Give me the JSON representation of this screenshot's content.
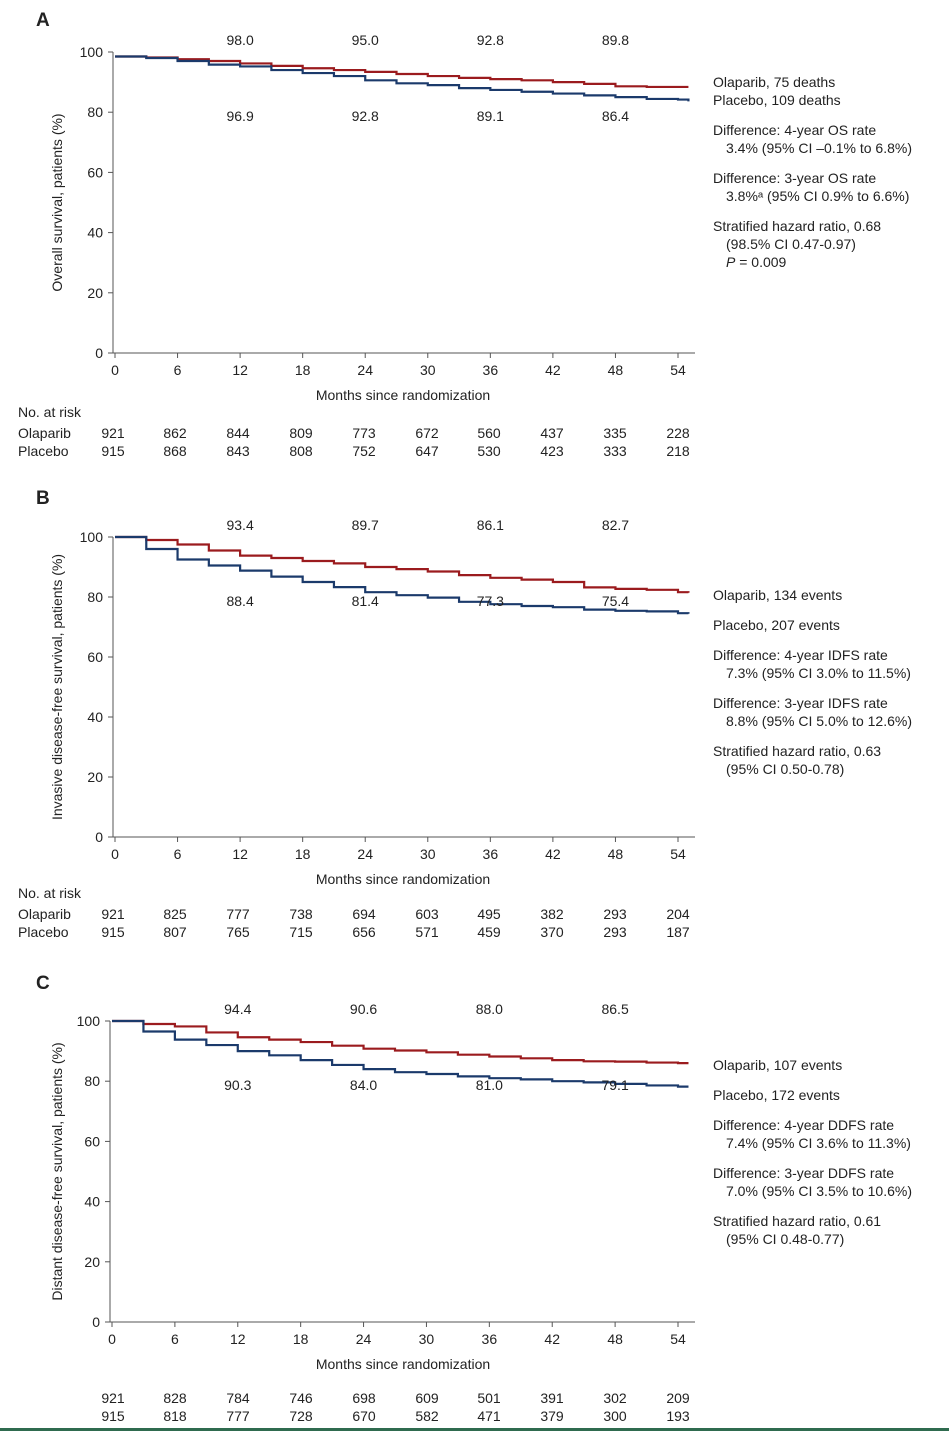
{
  "colors": {
    "olaparib": "#9b1b1e",
    "placebo": "#1b3a6b",
    "axis": "#555555"
  },
  "x_label": "Months since randomization",
  "x_ticks": [
    "0",
    "6",
    "12",
    "18",
    "24",
    "30",
    "36",
    "42",
    "48",
    "54"
  ],
  "y_ticks": [
    "0",
    "20",
    "40",
    "60",
    "80",
    "100"
  ],
  "risk_header": "No. at risk",
  "arm_labels": {
    "olaparib": "Olaparib",
    "placebo": "Placebo"
  },
  "chart_data": [
    {
      "panel": "A",
      "type": "line",
      "title": "",
      "xlabel": "Months since randomization",
      "ylabel": "Overall survival, patients (%)",
      "xlim": [
        0,
        55
      ],
      "ylim": [
        0,
        100
      ],
      "series": [
        {
          "name": "Olaparib",
          "x": [
            0,
            3,
            6,
            9,
            12,
            15,
            18,
            21,
            24,
            27,
            30,
            33,
            36,
            39,
            42,
            45,
            48,
            51,
            54,
            55
          ],
          "values": [
            98.5,
            98.2,
            97.6,
            97.0,
            96.2,
            95.4,
            94.6,
            94.0,
            93.4,
            92.7,
            92.0,
            91.4,
            91.0,
            90.6,
            90.0,
            89.4,
            88.6,
            88.4,
            88.4,
            88.4
          ]
        },
        {
          "name": "Placebo",
          "x": [
            0,
            3,
            6,
            9,
            12,
            15,
            18,
            21,
            24,
            27,
            30,
            33,
            36,
            39,
            42,
            45,
            48,
            51,
            54,
            55
          ],
          "values": [
            98.5,
            98.0,
            97.0,
            95.8,
            95.2,
            94.0,
            93.0,
            92.0,
            90.6,
            89.6,
            89.0,
            88.0,
            87.4,
            86.8,
            86.2,
            85.6,
            85.0,
            84.4,
            84.2,
            83.6
          ]
        }
      ],
      "annotations_top": [
        "98.0",
        "95.0",
        "92.8",
        "89.8"
      ],
      "annotations_bottom": [
        "96.9",
        "92.8",
        "89.1",
        "86.4"
      ],
      "legend": [
        "Olaparib, 75 deaths",
        "Placebo, 109 deaths",
        "",
        "Difference: 4-year OS rate",
        "3.4% (95% CI –0.1% to 6.8%)",
        "",
        "Difference: 3-year OS rate",
        "3.8%ᵃ (95% CI 0.9% to 6.6%)",
        "",
        "Stratified hazard ratio, 0.68",
        "(98.5% CI 0.47-0.97)",
        "P = 0.009"
      ],
      "risk_olaparib": [
        "921",
        "862",
        "844",
        "809",
        "773",
        "672",
        "560",
        "437",
        "335",
        "228"
      ],
      "risk_placebo": [
        "915",
        "868",
        "843",
        "808",
        "752",
        "647",
        "530",
        "423",
        "333",
        "218"
      ]
    },
    {
      "panel": "B",
      "type": "line",
      "title": "",
      "xlabel": "Months since randomization",
      "ylabel": "Invasive disease-free survival, patients (%)",
      "xlim": [
        0,
        55
      ],
      "ylim": [
        0,
        100
      ],
      "series": [
        {
          "name": "Olaparib",
          "x": [
            0,
            3,
            6,
            9,
            12,
            15,
            18,
            21,
            24,
            27,
            30,
            33,
            36,
            39,
            42,
            45,
            48,
            51,
            54,
            55
          ],
          "values": [
            100,
            99.0,
            97.5,
            95.5,
            93.8,
            93.0,
            92.0,
            91.2,
            90.0,
            89.3,
            88.5,
            87.3,
            86.4,
            85.8,
            85.0,
            83.2,
            82.7,
            82.4,
            81.6,
            81.4
          ]
        },
        {
          "name": "Placebo",
          "x": [
            0,
            3,
            6,
            9,
            12,
            15,
            18,
            21,
            24,
            27,
            30,
            33,
            36,
            39,
            42,
            45,
            48,
            51,
            54,
            55
          ],
          "values": [
            100,
            96.0,
            92.5,
            90.5,
            88.8,
            86.8,
            85.0,
            83.3,
            81.6,
            80.6,
            79.8,
            78.4,
            77.6,
            77.0,
            76.6,
            75.8,
            75.4,
            75.2,
            74.6,
            74.4
          ]
        }
      ],
      "annotations_top": [
        "93.4",
        "89.7",
        "86.1",
        "82.7"
      ],
      "annotations_bottom": [
        "88.4",
        "81.4",
        "77.3",
        "75.4"
      ],
      "legend": [
        "Olaparib, 134 events",
        "",
        "Placebo, 207 events",
        "",
        "Difference: 4-year IDFS rate",
        "7.3% (95% CI 3.0% to 11.5%)",
        "",
        "Difference: 3-year IDFS rate",
        "8.8% (95% CI 5.0% to 12.6%)",
        "",
        "Stratified hazard ratio, 0.63",
        "(95% CI 0.50-0.78)"
      ],
      "risk_olaparib": [
        "921",
        "825",
        "777",
        "738",
        "694",
        "603",
        "495",
        "382",
        "293",
        "204"
      ],
      "risk_placebo": [
        "915",
        "807",
        "765",
        "715",
        "656",
        "571",
        "459",
        "370",
        "293",
        "187"
      ]
    },
    {
      "panel": "C",
      "type": "line",
      "title": "",
      "xlabel": "Months since randomization",
      "ylabel": "Distant disease-free survival, patients (%)",
      "xlim": [
        0,
        55
      ],
      "ylim": [
        0,
        100
      ],
      "series": [
        {
          "name": "Olaparib",
          "x": [
            0,
            3,
            6,
            9,
            12,
            15,
            18,
            21,
            24,
            27,
            30,
            33,
            36,
            39,
            42,
            45,
            48,
            51,
            54,
            55
          ],
          "values": [
            100,
            99.0,
            98.2,
            96.2,
            94.6,
            93.8,
            93.0,
            91.8,
            90.8,
            90.2,
            89.6,
            88.8,
            88.2,
            87.6,
            87.0,
            86.6,
            86.5,
            86.2,
            86.0,
            86.0
          ]
        },
        {
          "name": "Placebo",
          "x": [
            0,
            3,
            6,
            9,
            12,
            15,
            18,
            21,
            24,
            27,
            30,
            33,
            36,
            39,
            42,
            45,
            48,
            51,
            54,
            55
          ],
          "values": [
            100,
            96.5,
            93.8,
            92.0,
            90.0,
            88.6,
            87.0,
            85.4,
            84.0,
            83.0,
            82.4,
            81.6,
            81.0,
            80.6,
            80.0,
            79.6,
            79.1,
            78.6,
            78.2,
            78.2
          ]
        }
      ],
      "annotations_top": [
        "94.4",
        "90.6",
        "88.0",
        "86.5"
      ],
      "annotations_bottom": [
        "90.3",
        "84.0",
        "81.0",
        "79.1"
      ],
      "legend": [
        "Olaparib, 107 events",
        "",
        "Placebo, 172 events",
        "",
        "Difference: 4-year DDFS rate",
        "7.4% (95% CI 3.6% to 11.3%)",
        "",
        "Difference: 3-year DDFS rate",
        "7.0% (95% CI 3.5% to 10.6%)",
        "",
        "Stratified hazard ratio, 0.61",
        "(95% CI 0.48-0.77)"
      ],
      "risk_olaparib": [
        "921",
        "828",
        "784",
        "746",
        "698",
        "609",
        "501",
        "391",
        "302",
        "209"
      ],
      "risk_placebo": [
        "915",
        "818",
        "777",
        "728",
        "670",
        "582",
        "471",
        "379",
        "300",
        "193"
      ]
    }
  ]
}
